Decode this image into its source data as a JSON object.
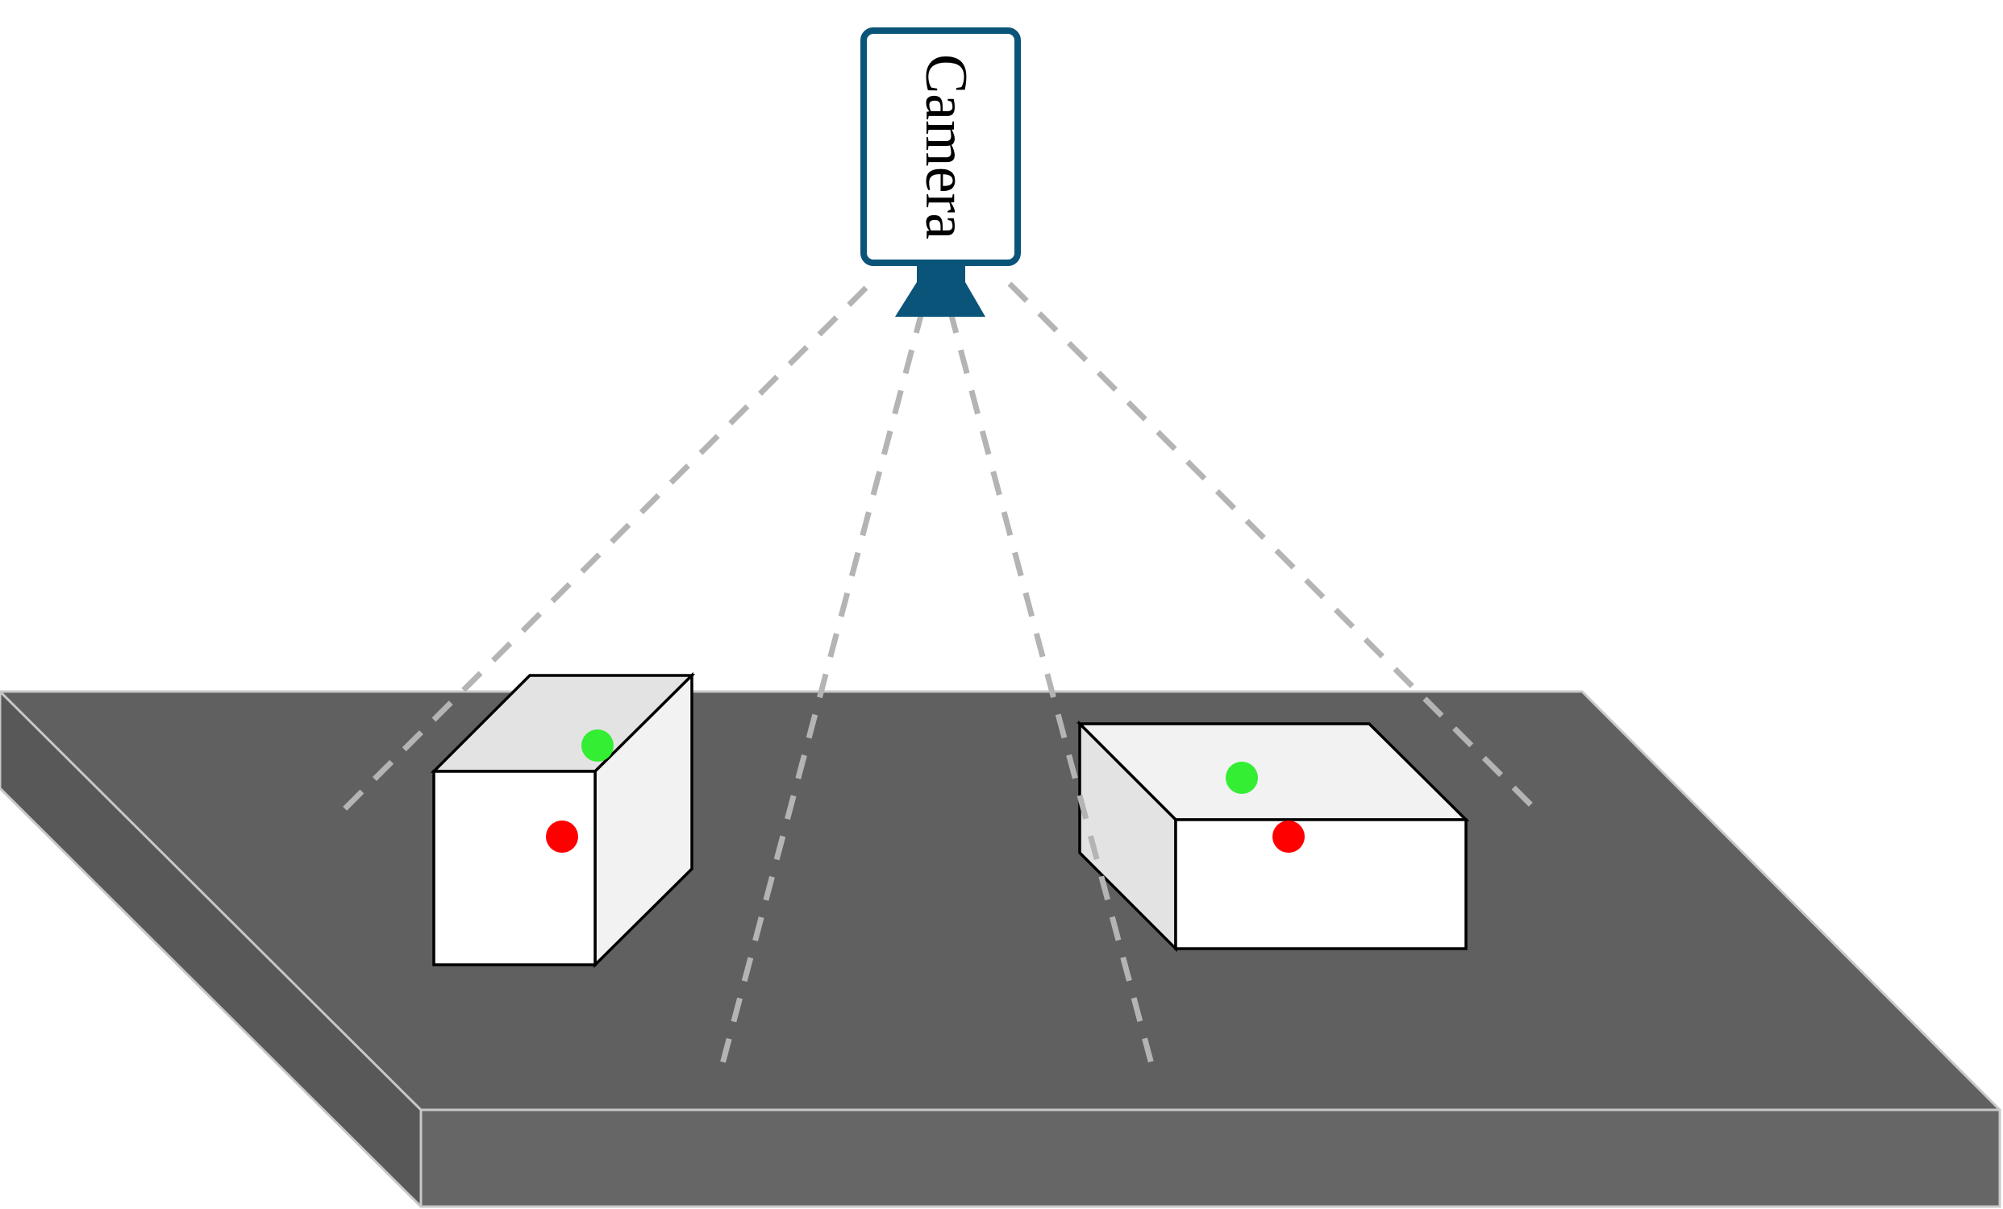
{
  "camera": {
    "label": "Camera",
    "color": "#0b5479"
  },
  "table": {
    "top_color": "#606060",
    "left_side_color": "#585858",
    "front_color": "#666666",
    "edge_color": "#c8c8c8"
  },
  "boxes": {
    "front_color": "#ffffff",
    "top_color_left_box": "#e3e3e3",
    "top_color_right_box": "#f2f2f2",
    "side_color_left_box": "#f2f2f2",
    "side_color_right_box": "#e3e3e3",
    "edge_color": "#000000"
  },
  "markers": {
    "green": "#33ee33",
    "red": "#ff0000"
  },
  "rays": {
    "color": "#b4b4b4"
  }
}
